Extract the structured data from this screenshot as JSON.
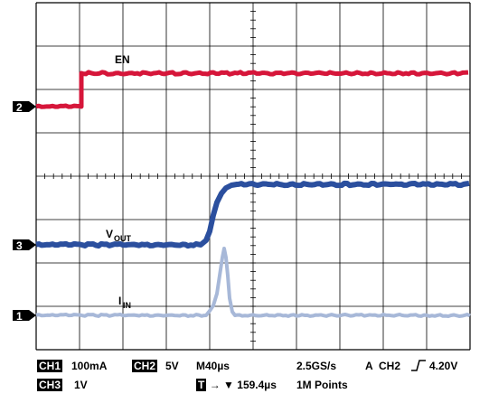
{
  "channel_markers": {
    "ch2": "2",
    "ch3": "3",
    "ch1": "1"
  },
  "signal_labels": {
    "en": "EN",
    "vout_main": "V",
    "vout_sub": "OUT",
    "iin_main": "I",
    "iin_sub": "IN"
  },
  "status_bar": {
    "ch1_badge": "CH1",
    "ch1_scale": "100mA",
    "ch2_badge": "CH2",
    "ch2_scale": "5V",
    "timebase": "M40µs",
    "sample_rate": "2.5GS/s",
    "trigger_mode": "A",
    "trigger_source": "CH2",
    "trigger_level": "4.20V",
    "ch3_badge": "CH3",
    "ch3_scale": "1V",
    "trigger_badge": "T",
    "trigger_position": "159.4µs",
    "record_length": "1M Points"
  },
  "colors": {
    "ch2_en": "#d6163a",
    "ch3_vout": "#2b4f9e",
    "ch1_iin": "#a7b8d8",
    "grid": "#000000"
  }
}
